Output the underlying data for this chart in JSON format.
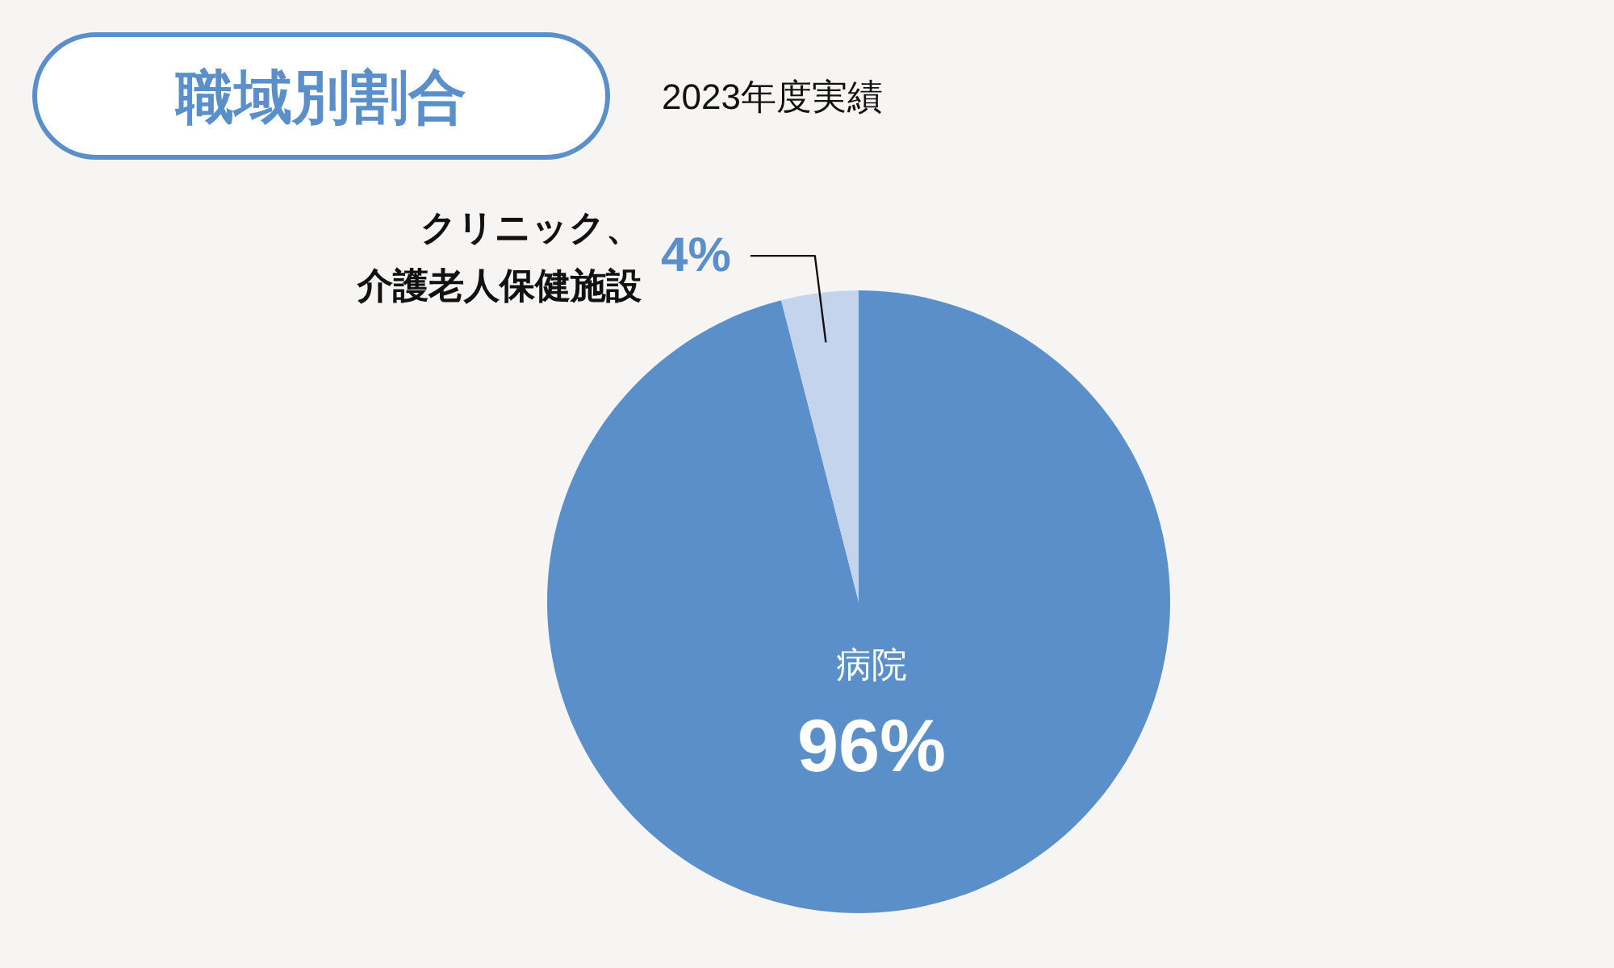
{
  "chart_data": {
    "type": "pie",
    "title": "職域別割合",
    "subtitle": "2023年度実績",
    "categories": [
      "病院",
      "クリニック、介護老人保健施設"
    ],
    "values": [
      96,
      4
    ],
    "colors": [
      "#5b8fc9",
      "#c4d4ec"
    ],
    "value_labels": [
      "96%",
      "4%"
    ]
  }
}
